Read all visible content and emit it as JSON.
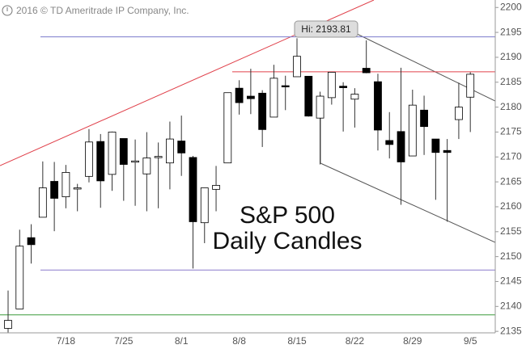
{
  "chart_data": {
    "type": "candlestick",
    "copyright": "2016 © TD Ameritrade IP Company, Inc.",
    "title": "S&P 500",
    "subtitle": "Daily Candles",
    "hi_label": "Hi: 2193.81",
    "categories": [
      null,
      null,
      null,
      null,
      null,
      "7/18",
      null,
      null,
      null,
      null,
      "7/25",
      null,
      null,
      null,
      null,
      "8/1",
      null,
      null,
      null,
      null,
      "8/8",
      null,
      null,
      null,
      null,
      "8/15",
      null,
      null,
      null,
      null,
      "8/22",
      null,
      null,
      null,
      null,
      "8/29",
      null,
      null,
      null,
      null,
      "9/5"
    ],
    "open": [
      2135.6,
      2139.5,
      2153.8,
      2157.9,
      2165.1,
      2162.0,
      2163.8,
      2166.1,
      2173.1,
      2166.5,
      2173.7,
      2169.0,
      2166.6,
      2170.1,
      2168.8,
      2173.2,
      2169.9,
      2156.8,
      2163.5,
      2168.8,
      2183.8,
      2182.2,
      2182.8,
      2178.0,
      2184.3,
      2186.1,
      2186.2,
      2177.8,
      2181.9,
      2184.2,
      2181.6,
      2187.8,
      2185.1,
      2173.3,
      2175.1,
      2170.2,
      2179.4,
      2173.6,
      2171.3,
      2177.5,
      2182.0
    ],
    "high": [
      2143.2,
      2155.4,
      2156.5,
      2169.1,
      2169.0,
      2168.4,
      2164.6,
      2175.6,
      2174.6,
      2175.1,
      2173.7,
      2173.5,
      2174.98,
      2172.9,
      2177.1,
      2178.3,
      2170.2,
      2163.8,
      2168.2,
      2182.9,
      2185.4,
      2187.7,
      2183.4,
      2188.5,
      2186.3,
      2193.81,
      2186.2,
      2183.1,
      2187.0,
      2185.0,
      2183.8,
      2193.4,
      2186.7,
      2179.0,
      2187.9,
      2183.5,
      2182.3,
      2173.6,
      2173.6,
      2184.9,
      2187.0
    ],
    "low": [
      2131.7,
      2139.5,
      2148.6,
      2157.9,
      2155.1,
      2159.7,
      2159.1,
      2164.9,
      2159.8,
      2163.2,
      2161.2,
      2160.2,
      2159.1,
      2159.7,
      2163.5,
      2166.2,
      2147.6,
      2152.7,
      2159.1,
      2168.8,
      2178.5,
      2178.6,
      2172.0,
      2178.0,
      2179.4,
      2186.1,
      2178.1,
      2168.5,
      2180.5,
      2175.1,
      2175.9,
      2186.8,
      2171.3,
      2169.7,
      2160.4,
      2170.2,
      2170.4,
      2161.4,
      2157.0,
      2173.6,
      2175.0
    ],
    "close": [
      2137.2,
      2152.1,
      2152.4,
      2163.8,
      2161.7,
      2166.9,
      2163.8,
      2173.0,
      2165.2,
      2175.0,
      2168.5,
      2169.2,
      2169.8,
      2170.1,
      2173.6,
      2170.8,
      2157.0,
      2163.8,
      2164.3,
      2182.9,
      2180.9,
      2181.7,
      2175.5,
      2185.8,
      2184.1,
      2190.2,
      2178.2,
      2182.2,
      2187.0,
      2183.9,
      2182.6,
      2186.9,
      2175.4,
      2172.5,
      2169.0,
      2180.4,
      2176.1,
      2170.9,
      2170.9,
      2180.0,
      2186.6
    ],
    "up_color": "#ffffff",
    "down_color": "#000000",
    "levels": [
      {
        "value": 2194.1,
        "color": "#7a7acc"
      },
      {
        "value": 2147.3,
        "color": "#8a7acc"
      },
      {
        "value": 2187.1,
        "color": "#e0404a"
      },
      {
        "value": 2138.3,
        "color": "#3a9a3a"
      }
    ],
    "ylim": [
      2134.7,
      2201.5
    ],
    "yticks": [
      2135,
      2140,
      2145,
      2150,
      2155,
      2160,
      2165,
      2170,
      2175,
      2180,
      2185,
      2190,
      2195,
      2200
    ]
  }
}
